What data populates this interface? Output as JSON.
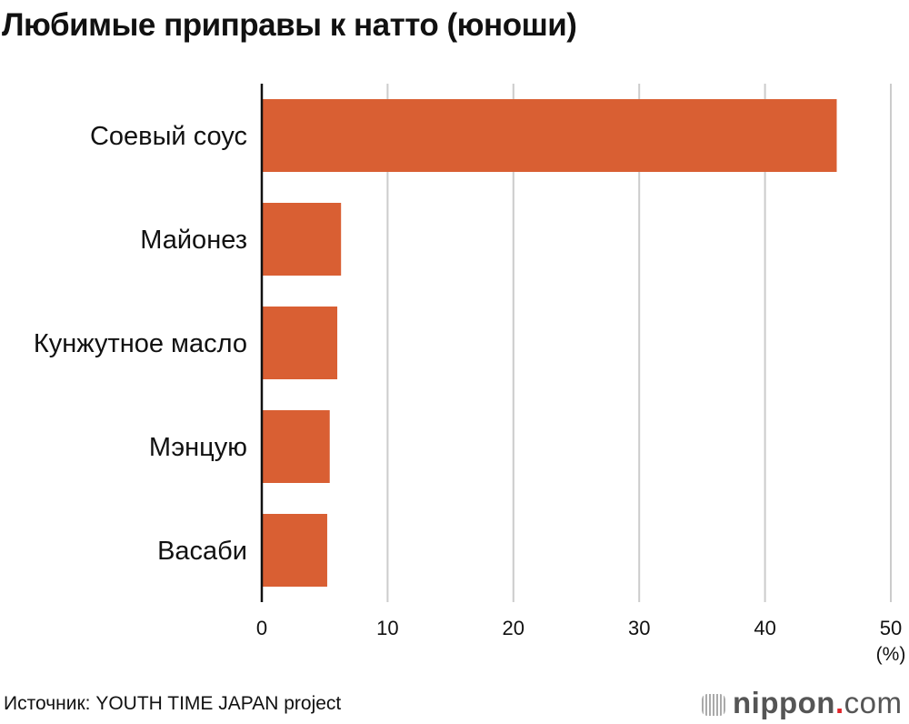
{
  "title": "Любимые приправы к натто (юноши)",
  "source": "Источник: YOUTH TIME JAPAN project",
  "logo": {
    "name": "nippon",
    "dot": ".",
    "tld": "com"
  },
  "colors": {
    "bar": "#d95f33",
    "grid": "#cccccc",
    "axis": "#111111"
  },
  "chart_data": {
    "type": "bar",
    "orientation": "horizontal",
    "title": "Любимые приправы к натто (юноши)",
    "categories": [
      "Соевый соус",
      "Майонез",
      "Кунжутное масло",
      "Мэнцую",
      "Васаби"
    ],
    "values": [
      45.7,
      6.3,
      6.0,
      5.4,
      5.2
    ],
    "xlabel": "(%)",
    "xlim": [
      0,
      50
    ],
    "xticks": [
      "0",
      "10",
      "20",
      "30",
      "40",
      "50"
    ],
    "grid": true
  }
}
